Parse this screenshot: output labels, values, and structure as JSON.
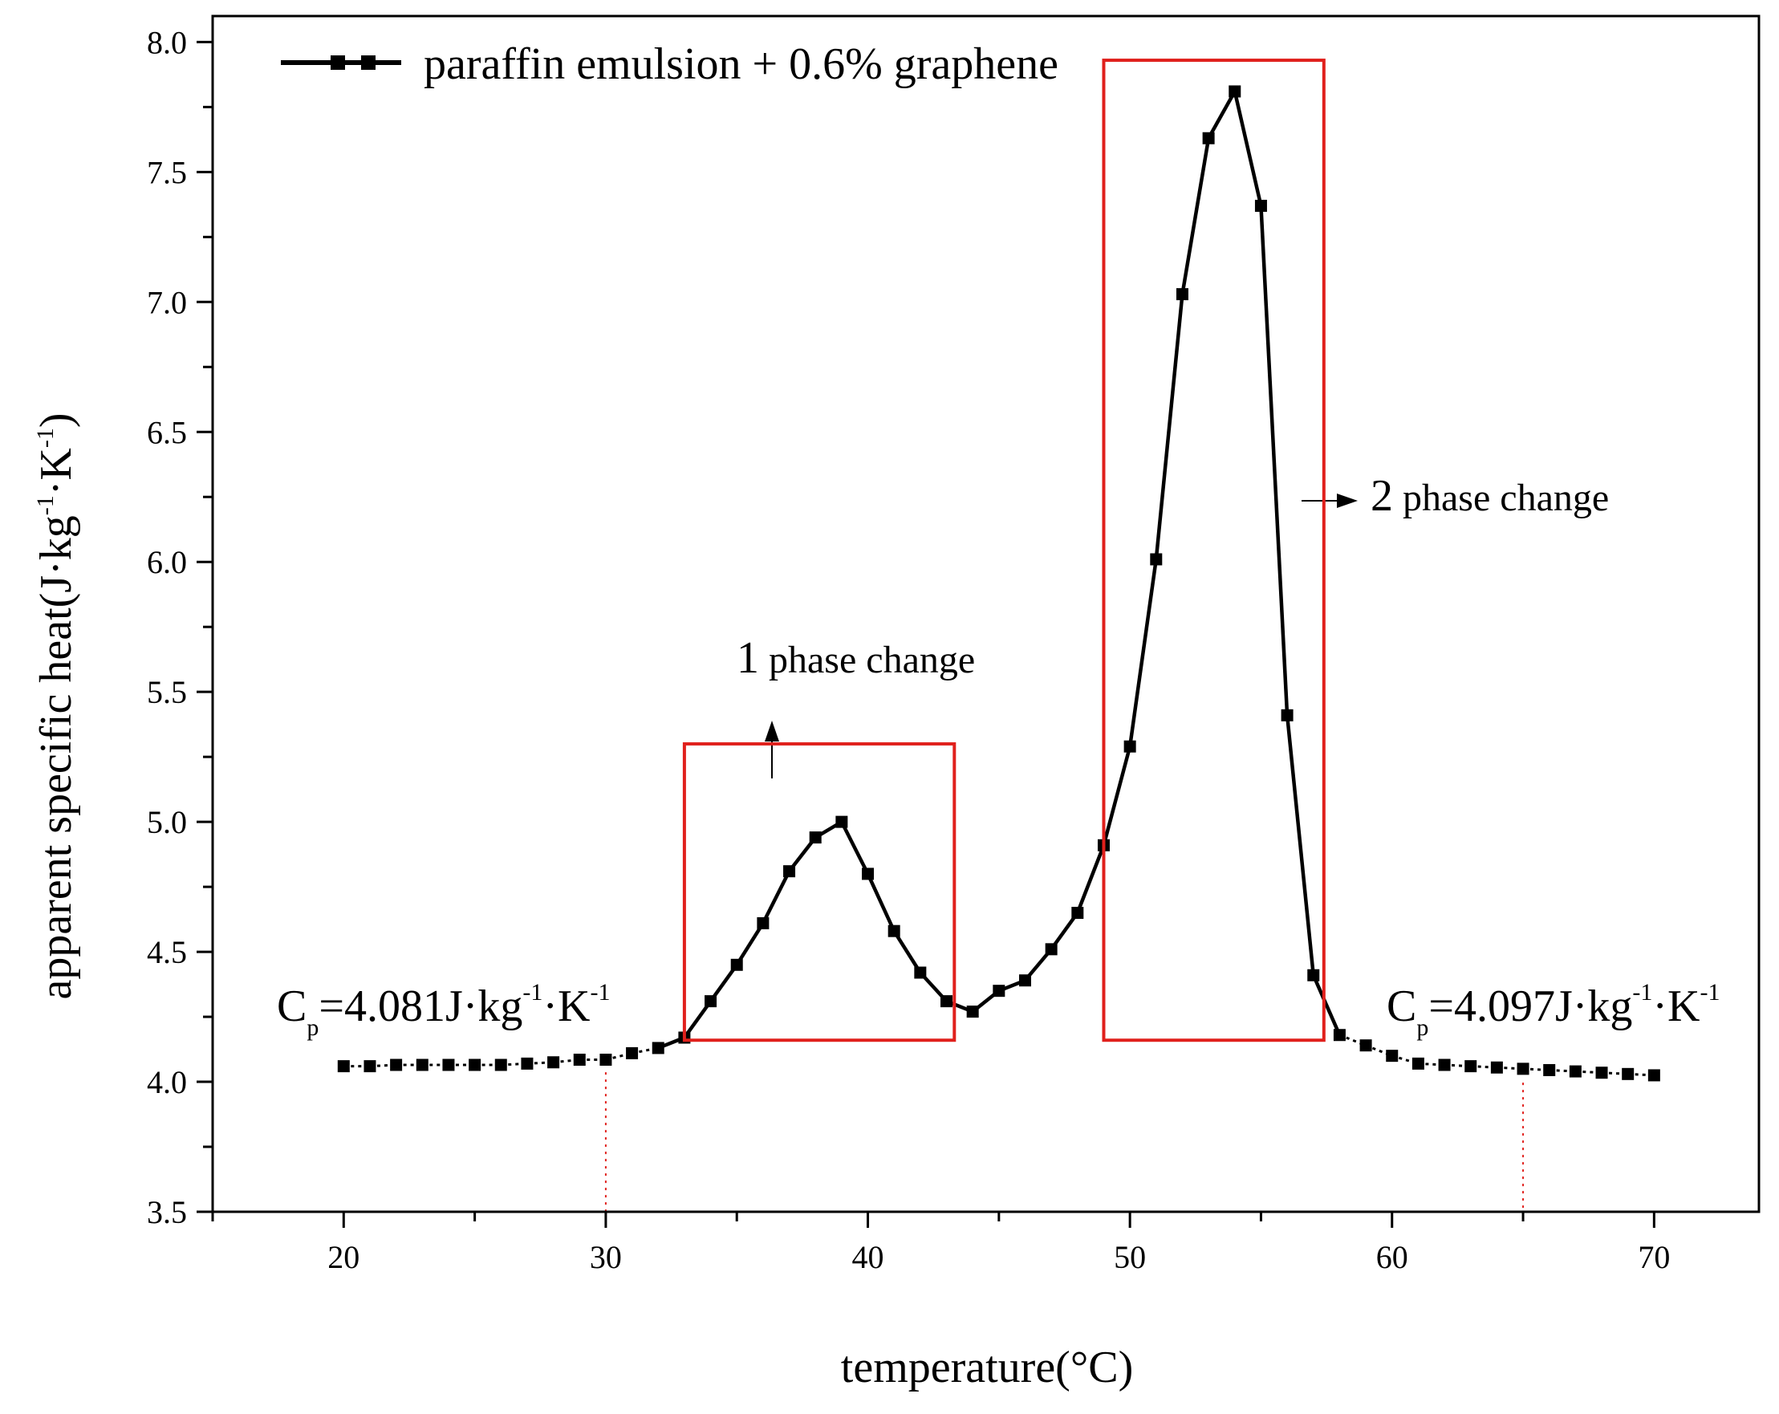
{
  "chart_data": {
    "type": "line",
    "title": "",
    "xlabel": "temperature(°C)",
    "ylabel_main": "apparent specific heat(J·kg",
    "ylabel_mid": "·K",
    "ylabel_end": ")",
    "ylabel_sup": "-1",
    "xlim": [
      15,
      74
    ],
    "ylim": [
      3.5,
      8.1
    ],
    "x_ticks": [
      20,
      30,
      40,
      50,
      60,
      70
    ],
    "x_tick_labels": [
      "20",
      "30",
      "40",
      "50",
      "60",
      "70"
    ],
    "y_ticks": [
      3.5,
      4.0,
      4.5,
      5.0,
      5.5,
      6.0,
      6.5,
      7.0,
      7.5,
      8.0
    ],
    "y_tick_labels": [
      "3.5",
      "4.0",
      "4.5",
      "5.0",
      "5.5",
      "6.0",
      "6.5",
      "7.0",
      "7.5",
      "8.0"
    ],
    "grid": false,
    "legend_position": "top-left",
    "series": [
      {
        "name": "paraffin emulsion + 0.6% graphene",
        "color": "#000000",
        "marker": "square",
        "x": [
          20,
          21,
          22,
          23,
          24,
          25,
          26,
          27,
          28,
          29,
          30,
          31,
          32,
          33,
          34,
          35,
          36,
          37,
          38,
          39,
          40,
          41,
          42,
          43,
          44,
          45,
          46,
          47,
          48,
          49,
          50,
          51,
          52,
          53,
          54,
          55,
          56,
          57,
          58,
          59,
          60,
          61,
          62,
          63,
          64,
          65,
          66,
          67,
          68,
          69,
          70
        ],
        "y": [
          4.06,
          4.06,
          4.065,
          4.065,
          4.065,
          4.065,
          4.065,
          4.07,
          4.075,
          4.085,
          4.085,
          4.11,
          4.13,
          4.17,
          4.31,
          4.45,
          4.61,
          4.81,
          4.94,
          5.0,
          4.8,
          4.58,
          4.42,
          4.31,
          4.27,
          4.35,
          4.39,
          4.51,
          4.65,
          4.91,
          5.29,
          6.01,
          7.03,
          7.63,
          7.81,
          7.37,
          5.41,
          4.41,
          4.18,
          4.14,
          4.1,
          4.07,
          4.065,
          4.06,
          4.055,
          4.05,
          4.045,
          4.04,
          4.035,
          4.03,
          4.025
        ]
      }
    ],
    "boxes": [
      {
        "name": "phase-box-1",
        "x0": 33,
        "x1": 43.3,
        "y0": 4.16,
        "y1": 5.3,
        "color": "#e0201c"
      },
      {
        "name": "phase-box-2",
        "x0": 49,
        "x1": 57.4,
        "y0": 4.16,
        "y1": 7.93,
        "color": "#e0201c"
      }
    ],
    "ref_lines": [
      {
        "name": "ref-line-30",
        "x": 30,
        "y_top": 4.08
      },
      {
        "name": "ref-line-65",
        "x": 65,
        "y_top": 4.04
      }
    ],
    "annotations": {
      "phase1": {
        "num": "1",
        "text": "phase change"
      },
      "phase2": {
        "num": "2",
        "text": "phase change"
      },
      "cp_left": {
        "c": "C",
        "sub": "p",
        "value": "=4.081J·kg",
        "unit_k": "·K",
        "sup": "-1"
      },
      "cp_right": {
        "c": "C",
        "sub": "p",
        "value": "=4.097J·kg",
        "unit_k": "·K",
        "sup": "-1"
      }
    }
  }
}
